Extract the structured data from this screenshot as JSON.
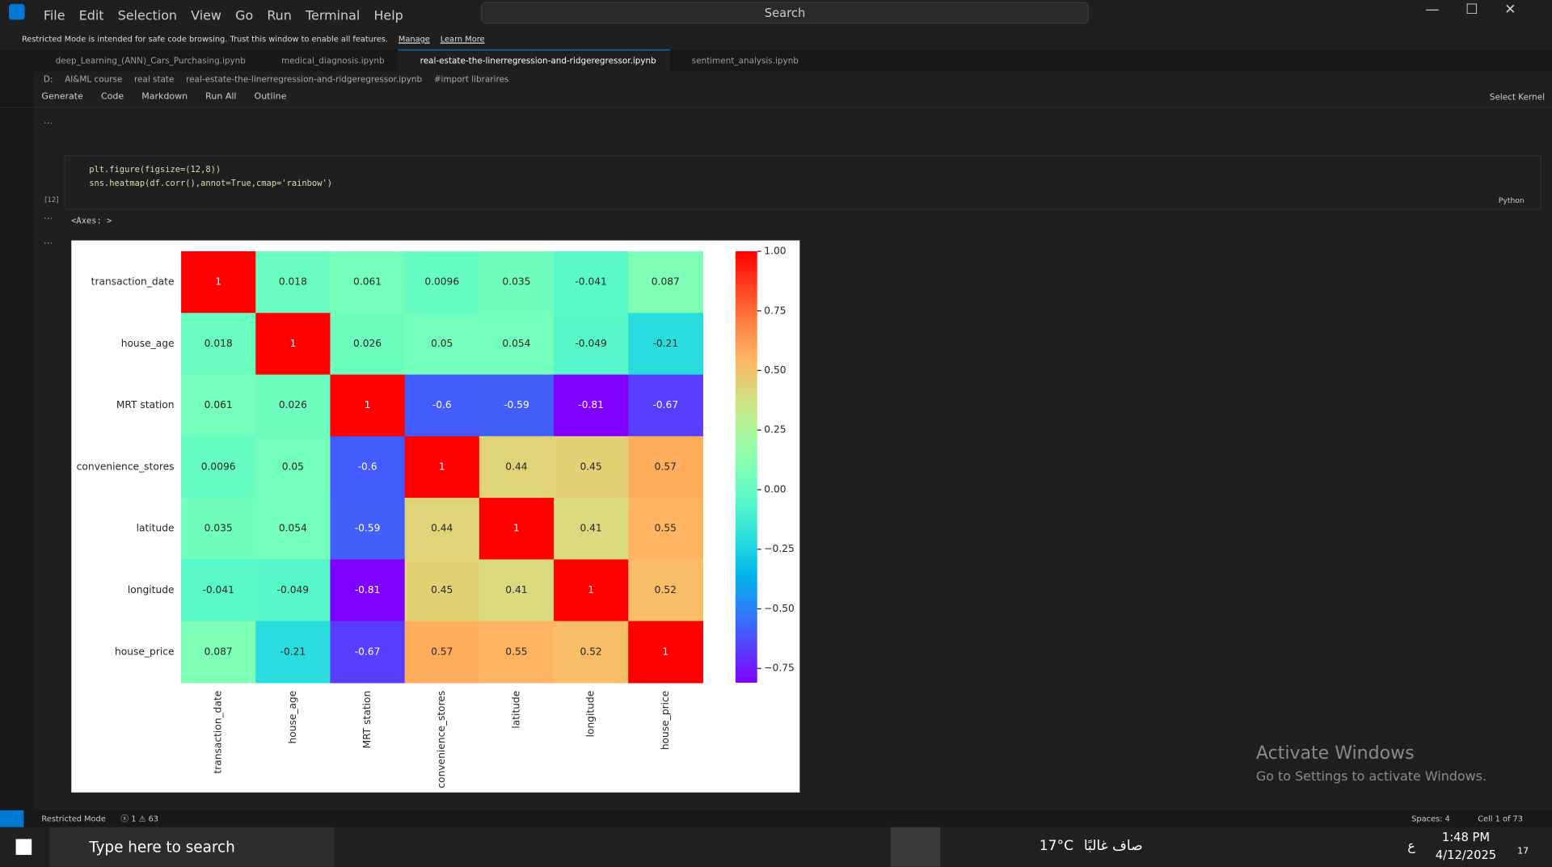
{
  "menu": [
    "File",
    "Edit",
    "Selection",
    "View",
    "Go",
    "Run",
    "Terminal",
    "Help"
  ],
  "search": "Search",
  "banner": {
    "text": "Restricted Mode is intended for safe code browsing. Trust this window to enable all features.",
    "links": [
      "Manage",
      "Learn More"
    ]
  },
  "tabs": [
    "deep_Learning_(ANN)_Cars_Purchasing.ipynb",
    "medical_diagnosis.ipynb",
    "real-estate-the-linerregression-and-ridgeregressor.ipynb",
    "sentiment_analysis.ipynb"
  ],
  "breadcrumb": [
    "D:",
    "AI&ML course",
    "real state",
    "real-estate-the-linerregression-and-ridgeregressor.ipynb",
    "#import librarires"
  ],
  "toolbar": [
    "Generate",
    "Code",
    "Markdown",
    "Run All",
    "Outline"
  ],
  "kernel": "Select Kernel",
  "cell": {
    "code": [
      "plt.figure(figsize=(12,8))",
      "sns.heatmap(df.corr(),annot=True,cmap='rainbow')"
    ],
    "count": "[12]",
    "language": "Python",
    "output": "<Axes: >"
  },
  "heatmap": {
    "type": "heatmap",
    "cmap": "rainbow",
    "labels": [
      "transaction_date",
      "house_age",
      "MRT station",
      "convenience_stores",
      "latitude",
      "longitude",
      "house_price"
    ],
    "values": [
      [
        1,
        0.018,
        0.061,
        0.0096,
        0.035,
        -0.041,
        0.087
      ],
      [
        0.018,
        1,
        0.026,
        0.05,
        0.054,
        -0.049,
        -0.21
      ],
      [
        0.061,
        0.026,
        1,
        -0.6,
        -0.59,
        -0.81,
        -0.67
      ],
      [
        0.0096,
        0.05,
        -0.6,
        1,
        0.44,
        0.45,
        0.57
      ],
      [
        0.035,
        0.054,
        -0.59,
        0.44,
        1,
        0.41,
        0.55
      ],
      [
        -0.041,
        -0.049,
        -0.81,
        0.45,
        0.41,
        1,
        0.52
      ],
      [
        0.087,
        -0.21,
        -0.67,
        0.57,
        0.55,
        0.52,
        1
      ]
    ],
    "clim": [
      -0.81,
      1
    ],
    "cticks": [
      {
        "value": 1,
        "label": "1.00"
      },
      {
        "value": 0.75,
        "label": "0.75"
      },
      {
        "value": 0.5,
        "label": "0.50"
      },
      {
        "value": 0.25,
        "label": "0.25"
      },
      {
        "value": 0,
        "label": "0.00"
      },
      {
        "value": -0.25,
        "label": "−0.25"
      },
      {
        "value": -0.5,
        "label": "−0.50"
      },
      {
        "value": -0.75,
        "label": "−0.75"
      }
    ]
  },
  "watermark": {
    "title": "Activate Windows",
    "text": "Go to Settings to activate Windows."
  },
  "status": {
    "mode": "Restricted Mode",
    "errors": "1",
    "warnings": "63",
    "spaces": "Spaces: 4",
    "cell": "Cell 1 of 73"
  },
  "taskbar": {
    "search": "Type here to search",
    "weather": "17°C",
    "condition": "صاف غالبًا",
    "lang": "ع",
    "time": "1:48 PM",
    "date": "4/12/2025",
    "notifications": "17"
  }
}
